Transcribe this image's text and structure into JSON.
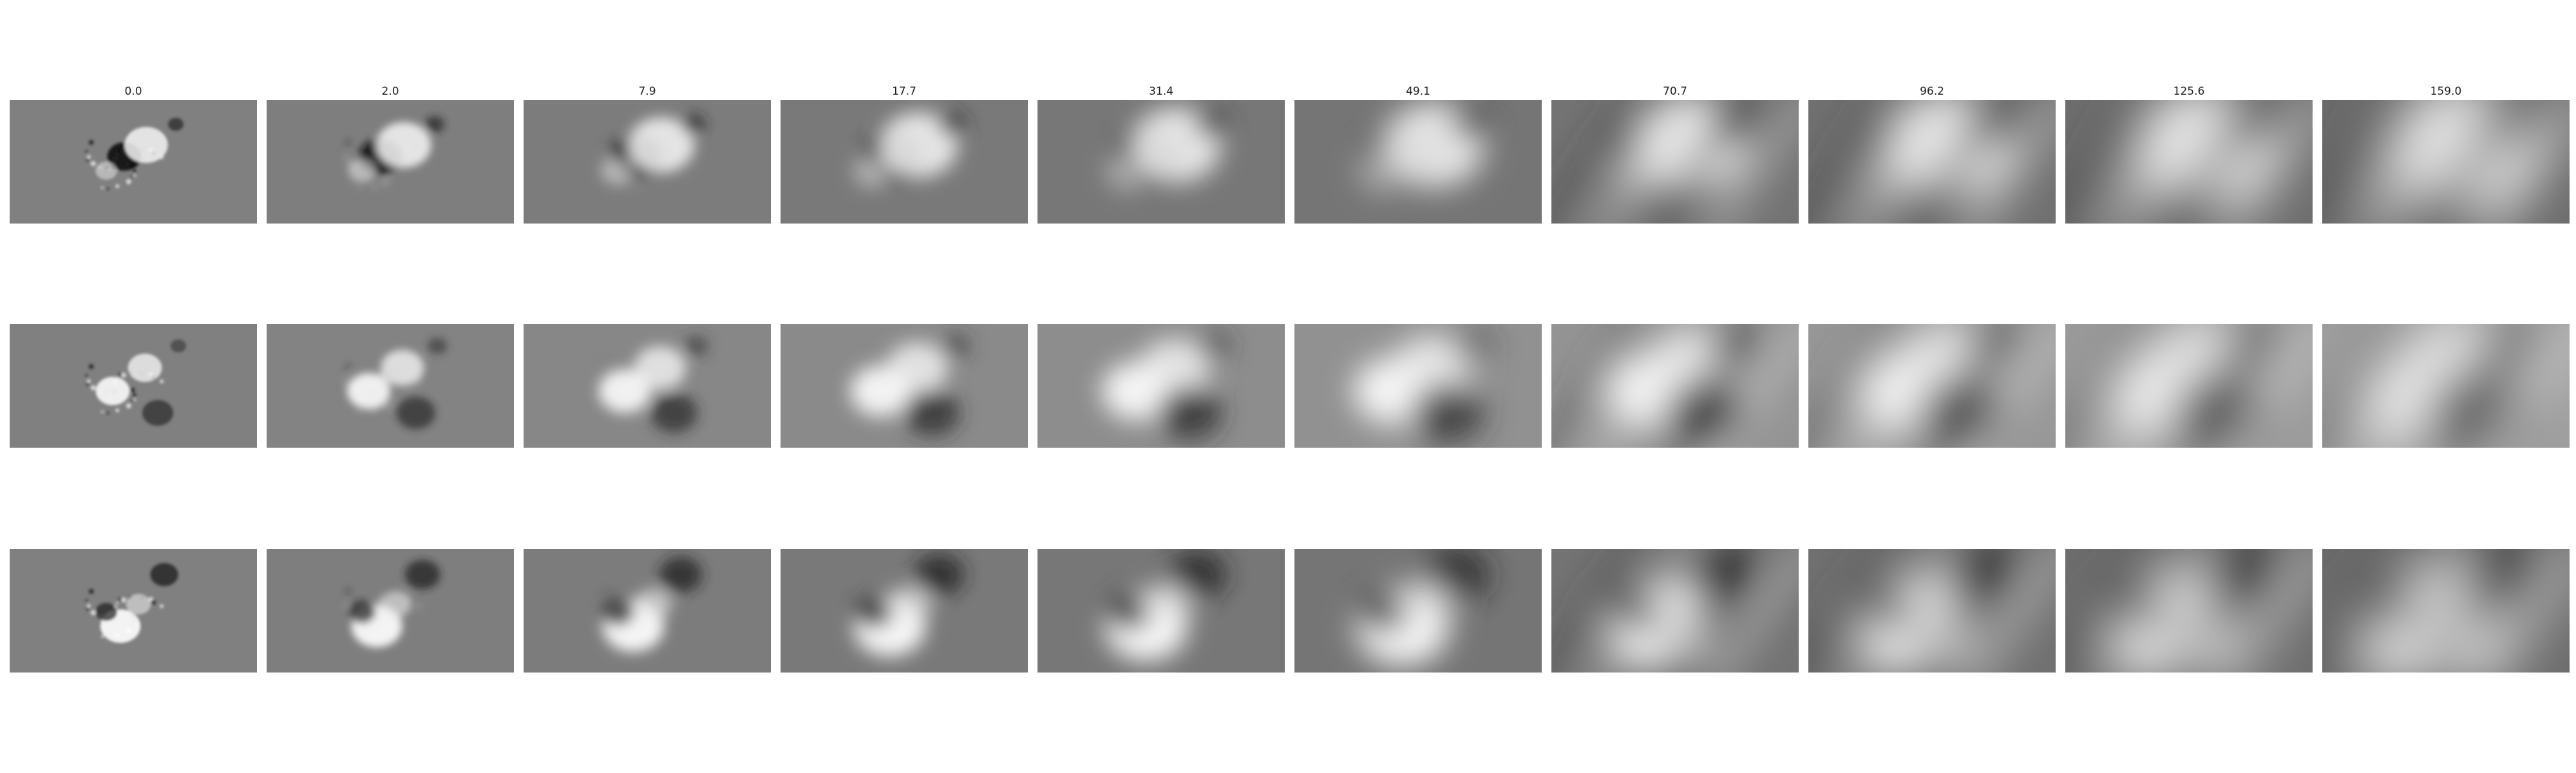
{
  "figure": {
    "column_titles": [
      "0.0",
      "2.0",
      "7.9",
      "17.7",
      "31.4",
      "49.1",
      "70.7",
      "96.2",
      "125.6",
      "159.0"
    ],
    "rows": 3,
    "columns": 10,
    "colormap": "grayscale"
  }
}
